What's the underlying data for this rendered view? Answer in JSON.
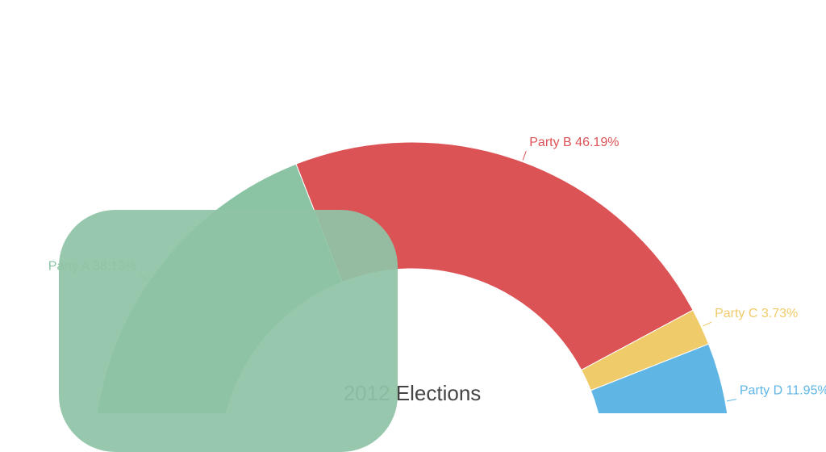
{
  "chart_data": {
    "type": "half-donut",
    "title": "2012 Elections",
    "categories": [
      "Party A",
      "Party B",
      "Party C",
      "Party D"
    ],
    "values": [
      38.13,
      46.19,
      3.73,
      11.95
    ],
    "value_labels": [
      "38.13%",
      "46.19%",
      "3.73%",
      "11.95%"
    ],
    "colors": [
      "#8bc4a5",
      "#dc5356",
      "#f0cb69",
      "#5fb6e5"
    ]
  }
}
